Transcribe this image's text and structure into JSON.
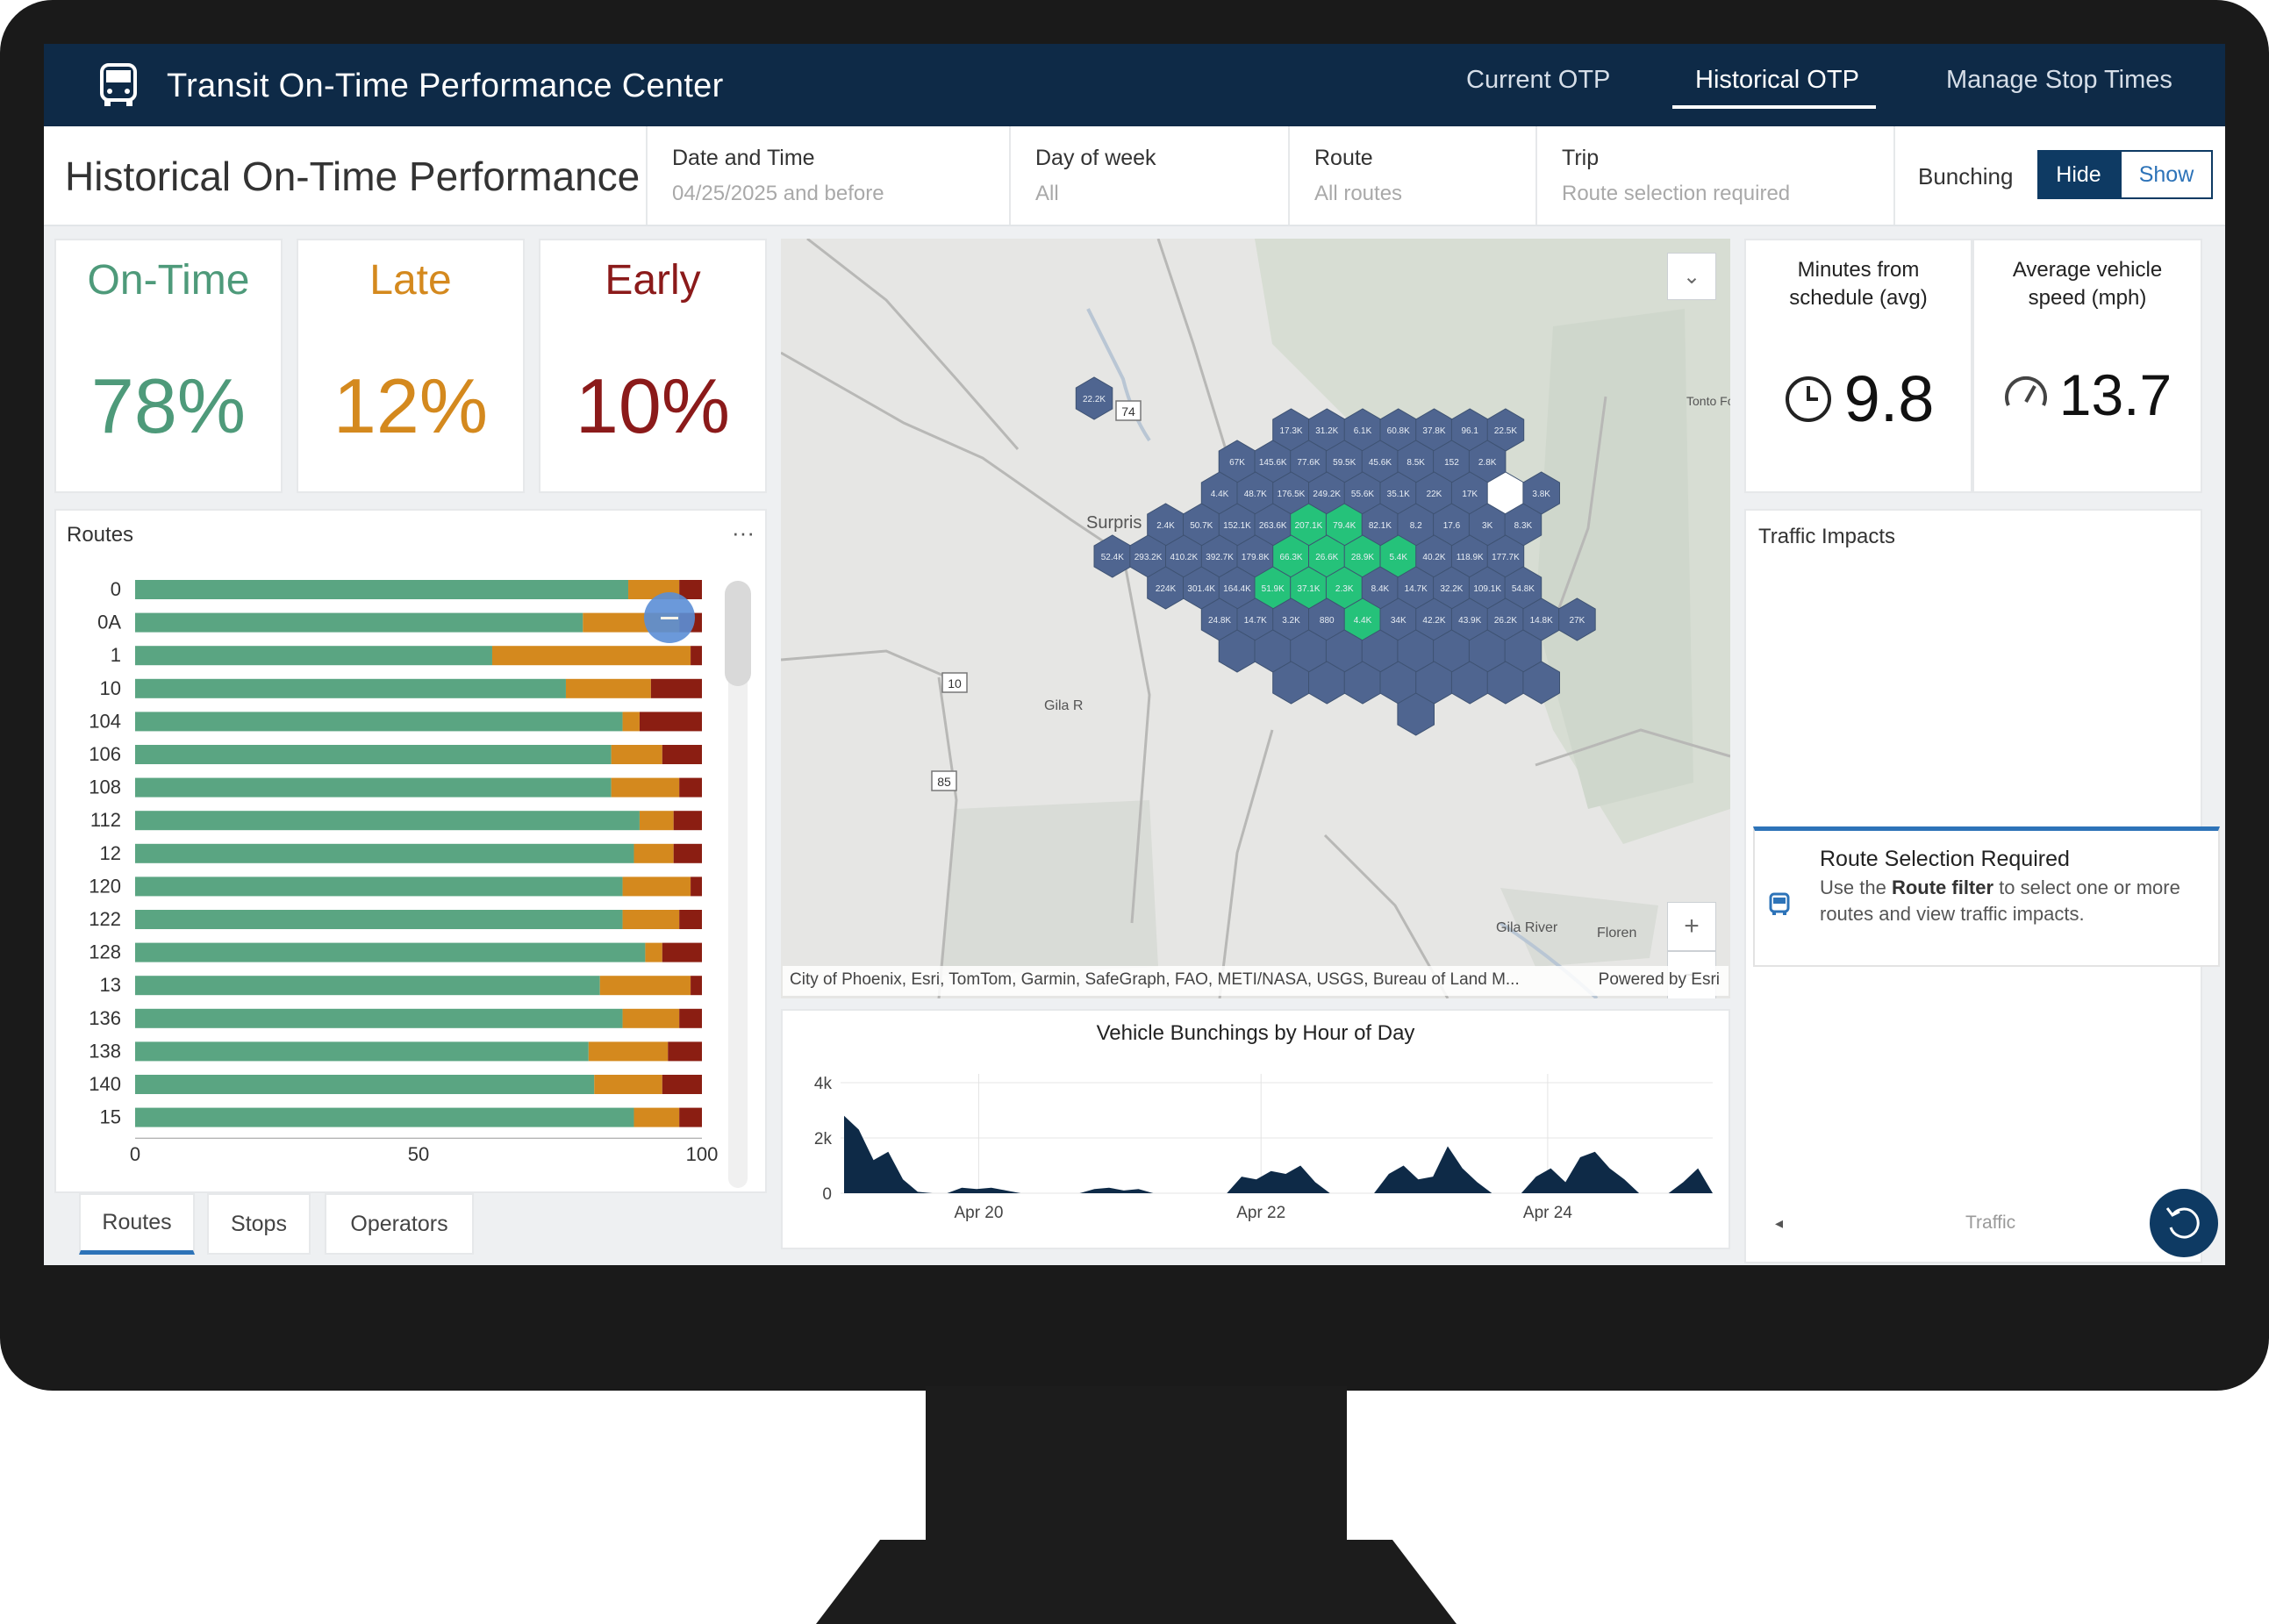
{
  "header": {
    "app_title": "Transit On-Time Performance Center",
    "nav": [
      "Current OTP",
      "Historical OTP",
      "Manage Stop Times"
    ],
    "active_nav": "Historical OTP"
  },
  "filters": {
    "page_title": "Historical On-Time Performance",
    "items": [
      {
        "label": "Date and Time",
        "value": "04/25/2025 and before"
      },
      {
        "label": "Day of week",
        "value": "All"
      },
      {
        "label": "Route",
        "value": "All routes"
      },
      {
        "label": "Trip",
        "value": "Route selection required"
      }
    ],
    "bunching": {
      "label": "Bunching",
      "hide": "Hide",
      "show": "Show",
      "selected": "Hide"
    }
  },
  "kpis": [
    {
      "title": "On-Time",
      "value": "78%",
      "color": "#4e9a7a"
    },
    {
      "title": "Late",
      "value": "12%",
      "color": "#d4891e"
    },
    {
      "title": "Early",
      "value": "10%",
      "color": "#8b1a1a"
    }
  ],
  "metrics": {
    "minutes_label": "Minutes from schedule (avg)",
    "minutes_value": "9.8",
    "speed_label": "Average vehicle speed (mph)",
    "speed_value": "13.7"
  },
  "routes_panel": {
    "title": "Routes",
    "menu": "···",
    "chart_data": {
      "type": "bar",
      "orientation": "horizontal",
      "stacked": true,
      "categories": [
        "0",
        "0A",
        "1",
        "10",
        "104",
        "106",
        "108",
        "112",
        "12",
        "120",
        "122",
        "128",
        "13",
        "136",
        "138",
        "140",
        "15"
      ],
      "series": [
        {
          "values": [
            87,
            79,
            63,
            76,
            86,
            84,
            84,
            89,
            88,
            86,
            86,
            90,
            82,
            86,
            80,
            81,
            88
          ]
        },
        {
          "values": [
            9,
            17,
            35,
            15,
            3,
            9,
            12,
            6,
            7,
            12,
            10,
            3,
            16,
            10,
            14,
            12,
            8
          ]
        },
        {
          "values": [
            4,
            4,
            2,
            9,
            11,
            7,
            4,
            5,
            5,
            2,
            4,
            7,
            2,
            4,
            6,
            7,
            4
          ]
        }
      ],
      "colors": [
        "#5aa582",
        "#d4891e",
        "#8b1e12"
      ],
      "xlim": [
        0,
        100
      ],
      "xticks": [
        "0",
        "50",
        "100"
      ]
    }
  },
  "tabs": [
    "Routes",
    "Stops",
    "Operators"
  ],
  "map": {
    "attribution": "City of Phoenix, Esri, TomTom, Garmin, SafeGraph, FAO, METI/NASA, USGS, Bureau of Land M...",
    "powered_by": "Powered by Esri",
    "place_labels": [
      "Surpris",
      "Gila R",
      "Gila River",
      "Floren",
      "Tonto Fc"
    ],
    "road_shields": [
      "74",
      "10",
      "85"
    ],
    "zoom_in": "+",
    "zoom_out": "−",
    "hex_labels": [
      "22.2K",
      "17.3K",
      "31.2K",
      "6.1K",
      "60.8K",
      "37.8K",
      "96.1",
      "22.5K",
      "67K",
      "145.6K",
      "77.6K",
      "59.5K",
      "45.6K",
      "8.5K",
      "152",
      "2.8K",
      "4.4K",
      "48.7K",
      "176.5K",
      "249.2K",
      "55.6K",
      "35.1K",
      "22K",
      "17K",
      "3.8K",
      "2.4K",
      "50.7K",
      "152.1K",
      "263.6K",
      "207.1K",
      "79.4K",
      "82.1K",
      "8.2",
      "17.6",
      "3K",
      "8.3K",
      "52.4K",
      "293.2K",
      "410.2K",
      "392.7K",
      "179.8K",
      "66.3K",
      "26.6K",
      "28.9K",
      "5.4K",
      "40.2K",
      "118.9K",
      "177.7K",
      "224K",
      "301.4K",
      "164.4K",
      "51.9K",
      "37.1K",
      "2.3K",
      "8.4K",
      "14.7K",
      "32.2K",
      "109.1K",
      "54.8K",
      "24.8K",
      "14.7K",
      "3.2K",
      "880",
      "4.4K",
      "34K",
      "42.2K",
      "43.9K",
      "26.2K",
      "14.8K",
      "27K"
    ]
  },
  "bunching_chart": {
    "title": "Vehicle Bunchings by Hour of Day",
    "chart_data": {
      "type": "area",
      "title": "Vehicle Bunchings by Hour of Day",
      "x": [
        0,
        1,
        2,
        3,
        4,
        5,
        6,
        7,
        8,
        9,
        10,
        11,
        12,
        13,
        14,
        15,
        16,
        17,
        18,
        19,
        20,
        21,
        22,
        23,
        24,
        25,
        26,
        27,
        28,
        29,
        30,
        31,
        32,
        33,
        34,
        35,
        36,
        37,
        38,
        39,
        40,
        41,
        42,
        43,
        44,
        45,
        46,
        47,
        48,
        49,
        50,
        51,
        52,
        53,
        54,
        55,
        56,
        57,
        58,
        59
      ],
      "values": [
        2800,
        2300,
        1200,
        1500,
        500,
        50,
        0,
        0,
        200,
        150,
        200,
        100,
        0,
        0,
        0,
        0,
        0,
        150,
        200,
        100,
        150,
        0,
        0,
        0,
        0,
        0,
        0,
        600,
        500,
        800,
        700,
        1000,
        400,
        0,
        0,
        0,
        0,
        700,
        1000,
        500,
        600,
        1700,
        900,
        400,
        0,
        0,
        0,
        600,
        900,
        400,
        1300,
        1500,
        900,
        500,
        0,
        0,
        0,
        400,
        900,
        0
      ],
      "yticks": [
        "0",
        "2k",
        "4k"
      ],
      "ylim": [
        0,
        4000
      ],
      "xticks": [
        "Apr 20",
        "Apr 22",
        "Apr 24"
      ],
      "color": "#0e2a47"
    }
  },
  "traffic": {
    "title": "Traffic Impacts",
    "notice_title": "Route Selection Required",
    "notice_body_pre": "Use the ",
    "notice_body_bold": "Route filter",
    "notice_body_post": " to select one or more routes and view traffic impacts.",
    "footer_label": "Traffic"
  }
}
